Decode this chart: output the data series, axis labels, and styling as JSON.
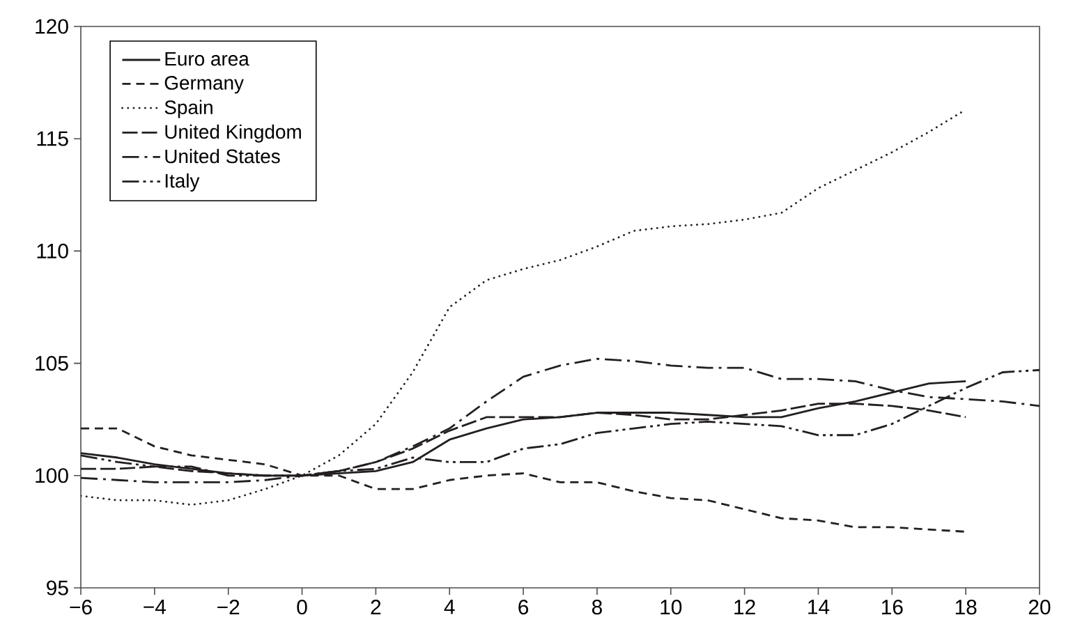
{
  "chart_data": {
    "type": "line",
    "x": [
      -6,
      -5,
      -4,
      -3,
      -2,
      -1,
      0,
      1,
      2,
      3,
      4,
      5,
      6,
      7,
      8,
      9,
      10,
      11,
      12,
      13,
      14,
      15,
      16,
      17,
      18,
      19,
      20
    ],
    "xlim": [
      -6,
      20
    ],
    "xticks": [
      {
        "value": -6,
        "label": "−6"
      },
      {
        "value": -4,
        "label": "−4"
      },
      {
        "value": -2,
        "label": "−2"
      },
      0,
      2,
      4,
      6,
      8,
      10,
      12,
      14,
      16,
      18,
      20
    ],
    "ylim": [
      95,
      120
    ],
    "yticks": [
      95,
      100,
      105,
      110,
      115,
      120
    ],
    "grid": false,
    "legend": "top left",
    "marker": "none",
    "series": [
      {
        "name": "Euro area",
        "color": "#231f20",
        "line_style": "solid",
        "values": [
          101.0,
          100.8,
          100.5,
          100.3,
          100.1,
          100.0,
          100.0,
          100.1,
          100.2,
          100.6,
          101.6,
          102.1,
          102.5,
          102.6,
          102.8,
          102.8,
          102.8,
          102.7,
          102.6,
          102.6,
          103.0,
          103.3,
          103.7,
          104.1,
          104.2,
          null,
          null
        ]
      },
      {
        "name": "Germany",
        "color": "#231f20",
        "line_style": "dashed",
        "values": [
          102.1,
          102.1,
          101.3,
          100.9,
          100.7,
          100.5,
          100.0,
          100.0,
          99.4,
          99.4,
          99.8,
          100.0,
          100.1,
          99.7,
          99.7,
          99.3,
          99.0,
          98.9,
          98.5,
          98.1,
          98.0,
          97.7,
          97.7,
          97.6,
          97.5,
          null,
          null
        ]
      },
      {
        "name": "Spain",
        "color": "#231f20",
        "line_style": "dotted",
        "values": [
          99.1,
          98.9,
          98.9,
          98.7,
          98.9,
          99.4,
          100.0,
          100.9,
          102.3,
          104.6,
          107.5,
          108.7,
          109.2,
          109.6,
          110.2,
          110.9,
          111.1,
          111.2,
          111.4,
          111.7,
          112.8,
          113.6,
          114.4,
          115.3,
          116.3,
          null,
          null
        ]
      },
      {
        "name": "United Kingdom",
        "color": "#231f20",
        "line_style": "longdash",
        "values": [
          100.3,
          100.3,
          100.4,
          100.2,
          100.1,
          100.0,
          100.0,
          100.2,
          100.6,
          101.2,
          102.0,
          102.6,
          102.6,
          102.6,
          102.8,
          102.7,
          102.5,
          102.5,
          102.7,
          102.9,
          103.2,
          103.2,
          103.1,
          102.9,
          102.6,
          null,
          null
        ]
      },
      {
        "name": "United States",
        "color": "#231f20",
        "line_style": "dashdot",
        "values": [
          99.9,
          99.8,
          99.7,
          99.7,
          99.7,
          99.8,
          100.0,
          100.2,
          100.6,
          101.3,
          102.1,
          103.3,
          104.4,
          104.9,
          105.2,
          105.1,
          104.9,
          104.8,
          104.8,
          104.3,
          104.3,
          104.2,
          103.8,
          103.5,
          103.4,
          103.3,
          103.1
        ]
      },
      {
        "name": "Italy",
        "color": "#231f20",
        "line_style": "dashdotdot",
        "values": [
          100.9,
          100.6,
          100.4,
          100.4,
          100.0,
          100.0,
          100.0,
          100.2,
          100.3,
          100.8,
          100.6,
          100.6,
          101.2,
          101.4,
          101.9,
          102.1,
          102.3,
          102.4,
          102.3,
          102.2,
          101.8,
          101.8,
          102.3,
          103.1,
          103.9,
          104.6,
          104.7
        ]
      }
    ]
  }
}
